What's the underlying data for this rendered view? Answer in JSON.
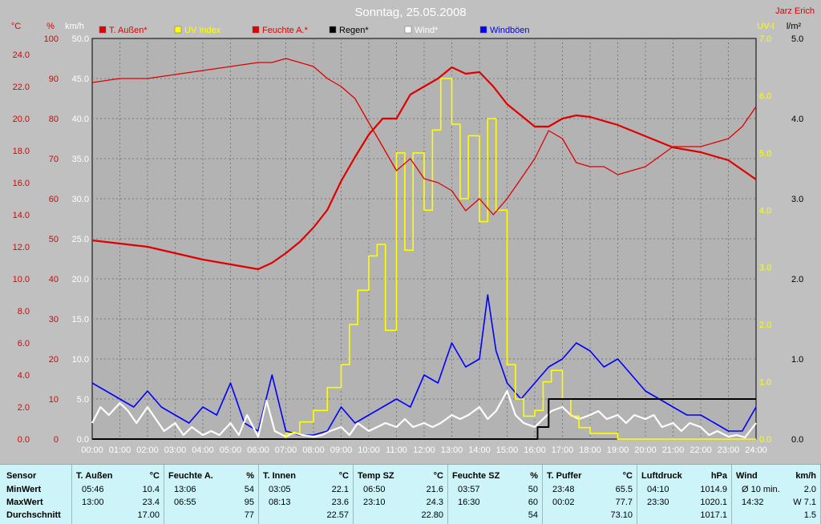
{
  "chart_data": {
    "type": "line",
    "title": "Sonntag, 25.05.2008",
    "corner_label": "Jarz Erich",
    "x_ticks": [
      "00:00",
      "01:00",
      "02:00",
      "03:00",
      "04:00",
      "05:00",
      "06:00",
      "07:00",
      "08:00",
      "09:00",
      "10:00",
      "11:00",
      "12:00",
      "13:00",
      "14:00",
      "15:00",
      "16:00",
      "17:00",
      "18:00",
      "19:00",
      "20:00",
      "21:00",
      "22:00",
      "23:00",
      "24:00"
    ],
    "x_range_hours": [
      0,
      24
    ],
    "grid": true,
    "axes": {
      "temp": {
        "unit": "°C",
        "color": "#e00000",
        "range": [
          0,
          25
        ],
        "ticks": [
          "0.0",
          "2.0",
          "4.0",
          "6.0",
          "8.0",
          "10.0",
          "12.0",
          "14.0",
          "16.0",
          "18.0",
          "20.0",
          "22.0",
          "24.0"
        ]
      },
      "humidity": {
        "unit": "%",
        "color": "#e00000",
        "range": [
          0,
          100
        ],
        "ticks": [
          "0",
          "10",
          "20",
          "30",
          "40",
          "50",
          "60",
          "70",
          "80",
          "90",
          "100"
        ]
      },
      "wind": {
        "unit": "km/h",
        "color": "#ffffff",
        "range": [
          0,
          50
        ],
        "ticks": [
          "0.0",
          "5.0",
          "10.0",
          "15.0",
          "20.0",
          "25.0",
          "30.0",
          "35.0",
          "40.0",
          "45.0",
          "50.0"
        ]
      },
      "uv": {
        "unit": "UV-I",
        "color": "#ffff00",
        "range": [
          0,
          7
        ],
        "ticks": [
          "0.0",
          "1.0",
          "2.0",
          "3.0",
          "4.0",
          "5.0",
          "6.0",
          "7.0"
        ]
      },
      "rain": {
        "unit": "l/m²",
        "color": "#000000",
        "range": [
          0,
          5
        ],
        "ticks": [
          "0.0",
          "1.0",
          "2.0",
          "3.0",
          "4.0",
          "5.0"
        ]
      }
    },
    "legend": [
      {
        "label": "T. Außen*",
        "color": "#e00000"
      },
      {
        "label": "UV Index",
        "color": "#ffff00"
      },
      {
        "label": "Feuchte A.*",
        "color": "#e00000"
      },
      {
        "label": "Regen*",
        "color": "#000000"
      },
      {
        "label": "Wind*",
        "color": "#ffffff"
      },
      {
        "label": "Windböen",
        "color": "#0000ff"
      }
    ],
    "series": [
      {
        "name": "T. Außen*",
        "axis": "temp",
        "color": "#e00000",
        "x": [
          0,
          1,
          2,
          3,
          4,
          5,
          6,
          6.5,
          7,
          7.5,
          8,
          8.5,
          9,
          9.5,
          10,
          10.5,
          11,
          11.5,
          12,
          12.5,
          13,
          13.5,
          14,
          14.5,
          15,
          15.5,
          16,
          16.5,
          17,
          17.5,
          18,
          19,
          20,
          21,
          22,
          23,
          24
        ],
        "y": [
          12.4,
          12.2,
          12.0,
          11.6,
          11.2,
          10.9,
          10.6,
          11.0,
          11.6,
          12.3,
          13.2,
          14.3,
          16.1,
          17.6,
          19.0,
          20.0,
          20.0,
          21.5,
          22.0,
          22.5,
          23.2,
          22.8,
          22.9,
          22.0,
          20.9,
          20.2,
          19.5,
          19.5,
          20.0,
          20.2,
          20.1,
          19.6,
          18.9,
          18.2,
          17.9,
          17.4,
          16.2
        ]
      },
      {
        "name": "Feuchte A.*",
        "axis": "humidity",
        "color": "#e00000",
        "x": [
          0,
          1,
          2,
          3,
          4,
          5,
          6,
          6.5,
          7,
          7.5,
          8,
          8.5,
          9,
          9.5,
          10,
          10.5,
          11,
          11.5,
          12,
          12.5,
          13,
          13.5,
          14,
          14.5,
          15,
          15.5,
          16,
          16.5,
          17,
          17.5,
          18,
          18.5,
          19,
          20,
          21,
          22,
          22.5,
          23,
          23.5,
          24
        ],
        "y": [
          89,
          90,
          90,
          91,
          92,
          93,
          94,
          94,
          95,
          94,
          93,
          90,
          88,
          85,
          79,
          73,
          67,
          70,
          65,
          64,
          62,
          57,
          60,
          56,
          60,
          65,
          70,
          77,
          75,
          69,
          68,
          68,
          66,
          68,
          73,
          73,
          74,
          75,
          78,
          83
        ]
      },
      {
        "name": "UV Index",
        "axis": "uv",
        "color": "#ffff00",
        "x": [
          0,
          6.5,
          7,
          7.5,
          8,
          8.5,
          9,
          9.3,
          9.6,
          10,
          10.3,
          10.6,
          11,
          11.3,
          11.6,
          12,
          12.3,
          12.6,
          13,
          13.3,
          13.6,
          14,
          14.3,
          14.6,
          15,
          15.3,
          15.6,
          16,
          16.3,
          16.6,
          17,
          17.3,
          17.6,
          18,
          18.5,
          19,
          20,
          24
        ],
        "y": [
          0,
          0,
          0.1,
          0.3,
          0.5,
          0.9,
          1.3,
          2.0,
          2.6,
          3.2,
          3.4,
          1.9,
          5.0,
          3.3,
          5.0,
          4.0,
          5.4,
          6.3,
          5.5,
          4.2,
          5.3,
          3.8,
          5.6,
          4.0,
          1.3,
          0.7,
          0.4,
          0.5,
          1.0,
          1.2,
          0.7,
          0.4,
          0.2,
          0.1,
          0.1,
          0,
          0,
          0
        ]
      },
      {
        "name": "Wind*",
        "axis": "wind",
        "color": "#ffffff",
        "x": [
          0,
          0.3,
          0.6,
          1,
          1.3,
          1.6,
          2,
          2.3,
          2.6,
          3,
          3.3,
          3.6,
          4,
          4.3,
          4.6,
          5,
          5.3,
          5.6,
          6,
          6.3,
          6.6,
          7,
          7.3,
          7.6,
          8,
          8.3,
          8.6,
          9,
          9.3,
          9.6,
          10,
          10.3,
          10.6,
          11,
          11.3,
          11.6,
          12,
          12.3,
          12.6,
          13,
          13.3,
          13.6,
          14,
          14.3,
          14.6,
          15,
          15.3,
          15.6,
          16,
          16.3,
          16.6,
          17,
          17.3,
          17.6,
          18,
          18.3,
          18.6,
          19,
          19.3,
          19.6,
          20,
          20.3,
          20.6,
          21,
          21.3,
          21.6,
          22,
          22.3,
          22.6,
          23,
          23.3,
          23.6,
          24
        ],
        "y": [
          2.0,
          4.0,
          3.0,
          4.5,
          3.5,
          2.0,
          4.0,
          2.5,
          1.0,
          2.0,
          0.5,
          1.5,
          0.5,
          1.0,
          0.5,
          2.0,
          0.5,
          3.0,
          0.3,
          4.8,
          1.0,
          0.3,
          0.8,
          0.5,
          0.3,
          0.5,
          1.0,
          1.5,
          0.5,
          2.0,
          1.0,
          1.5,
          2.0,
          1.5,
          2.5,
          1.5,
          2.0,
          1.5,
          2.0,
          3.0,
          2.5,
          3.0,
          4.0,
          2.5,
          3.5,
          6.0,
          3.0,
          2.0,
          1.5,
          2.5,
          3.5,
          4.0,
          3.0,
          2.5,
          3.0,
          3.5,
          2.5,
          3.0,
          2.0,
          3.0,
          2.5,
          3.0,
          1.5,
          2.0,
          1.0,
          2.0,
          1.5,
          0.5,
          1.0,
          0.3,
          0.5,
          0.2,
          2.0
        ]
      },
      {
        "name": "Windböen",
        "axis": "wind",
        "color": "#0000ff",
        "x": [
          0,
          0.5,
          1,
          1.5,
          2,
          2.5,
          3,
          3.5,
          4,
          4.5,
          5,
          5.5,
          6,
          6.5,
          7,
          7.5,
          8,
          8.5,
          9,
          9.5,
          10,
          10.5,
          11,
          11.5,
          12,
          12.5,
          13,
          13.5,
          14,
          14.3,
          14.6,
          15,
          15.5,
          16,
          16.5,
          17,
          17.5,
          18,
          18.5,
          19,
          19.5,
          20,
          20.5,
          21,
          21.5,
          22,
          22.5,
          23,
          23.5,
          24
        ],
        "y": [
          7,
          6,
          5,
          4,
          6,
          4,
          3,
          2,
          4,
          3,
          7,
          2,
          1,
          8,
          1,
          0.5,
          0.5,
          1,
          4,
          2,
          3,
          4,
          5,
          4,
          8,
          7,
          12,
          9,
          10,
          18,
          11,
          7,
          5,
          7,
          9,
          10,
          12,
          11,
          9,
          10,
          8,
          6,
          5,
          4,
          3,
          3,
          2,
          1,
          1,
          4
        ]
      },
      {
        "name": "Regen*",
        "axis": "rain",
        "color": "#000000",
        "x": [
          0,
          16,
          16.1,
          16.4,
          16.5,
          17,
          24
        ],
        "y": [
          0,
          0,
          0.15,
          0.15,
          0.5,
          0.5,
          0.5
        ]
      }
    ]
  },
  "stats": {
    "rows": [
      "MinWert",
      "MaxWert",
      "Durchschnitt"
    ],
    "sensor_label": "Sensor",
    "columns": [
      {
        "title": "T. Außen",
        "unit": "°C",
        "min_time": "05:46",
        "min": "10.4",
        "max_time": "13:00",
        "max": "23.4",
        "avg": "17.00"
      },
      {
        "title": "Feuchte A.",
        "unit": "%",
        "min_time": "13:06",
        "min": "54",
        "max_time": "06:55",
        "max": "95",
        "avg": "77"
      },
      {
        "title": "T. Innen",
        "unit": "°C",
        "min_time": "03:05",
        "min": "22.1",
        "max_time": "08:13",
        "max": "23.6",
        "avg": "22.57"
      },
      {
        "title": "Temp SZ",
        "unit": "°C",
        "min_time": "06:50",
        "min": "21.6",
        "max_time": "23:10",
        "max": "24.3",
        "avg": "22.80"
      },
      {
        "title": "Feuchte SZ",
        "unit": "%",
        "min_time": "03:57",
        "min": "50",
        "max_time": "16:30",
        "max": "60",
        "avg": "54"
      },
      {
        "title": "T. Puffer",
        "unit": "°C",
        "min_time": "23:48",
        "min": "65.5",
        "max_time": "00:02",
        "max": "77.7",
        "avg": "73.10"
      },
      {
        "title": "Luftdruck",
        "unit": "hPa",
        "min_time": "04:10",
        "min": "1014.9",
        "max_time": "23:30",
        "max": "1020.1",
        "avg": "1017.1"
      },
      {
        "title": "Wind",
        "unit": "km/h",
        "min_time": "Ø 10 min.",
        "min": "2.0",
        "max_time": "14:32",
        "max": "W 7.1",
        "avg": "1.5"
      }
    ]
  }
}
